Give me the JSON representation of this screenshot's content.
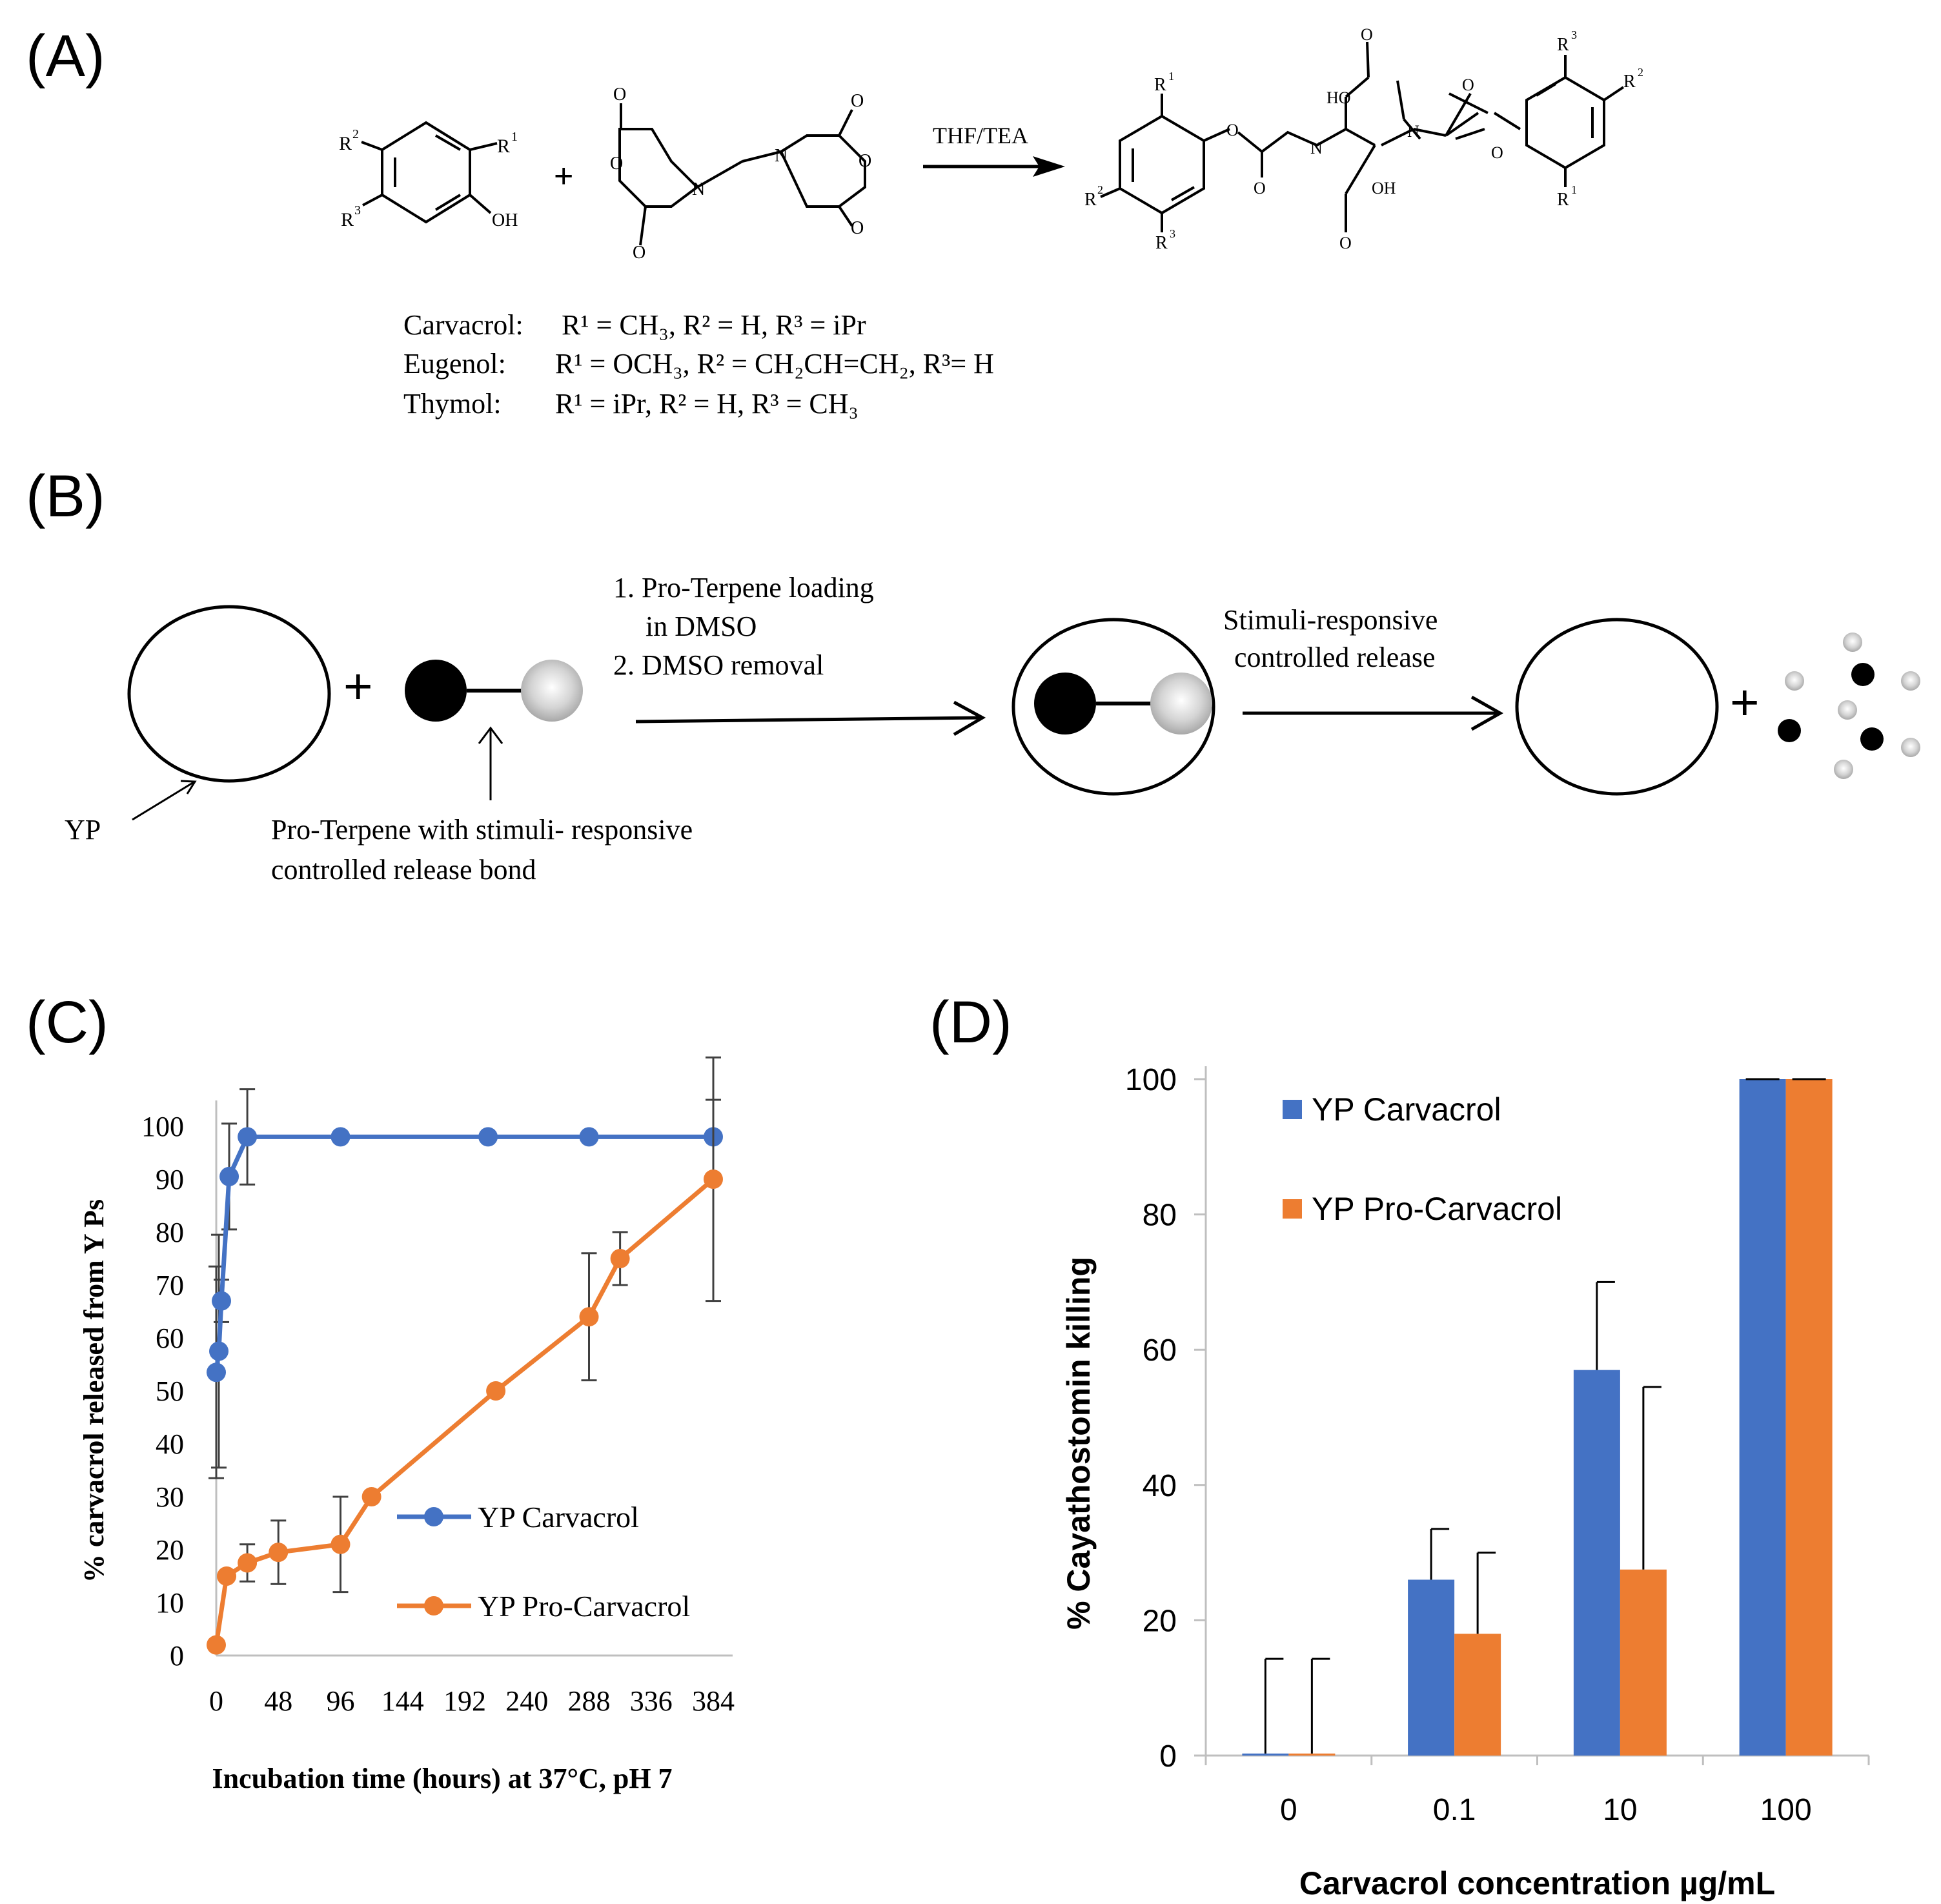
{
  "panels": {
    "a": {
      "label": "(A)",
      "reagent": "THF/TEA",
      "plus": "+",
      "sub_labels": {
        "r1": "R",
        "r2": "R",
        "r3": "R",
        "s1": "1",
        "s2": "2",
        "s3": "3",
        "oh": "OH",
        "n": "N",
        "o": "O",
        "ho": "HO"
      },
      "substituents": [
        {
          "name": "Carvacrol:",
          "text": "R¹ = CH₃, R² = H, R³ = iPr"
        },
        {
          "name": "Eugenol:",
          "text": "R¹ = OCH₃, R² = CH₂CH=CH₂, R³= H"
        },
        {
          "name": "Thymol:",
          "text": "R¹ = iPr, R² = H, R³ = CH₃"
        }
      ]
    },
    "b": {
      "label": "(B)",
      "step1": "1. Pro-Terpene loading",
      "step1b": "in DMSO",
      "step2": "2. DMSO removal",
      "release1": "Stimuli-responsive",
      "release2": "controlled release",
      "yp": "YP",
      "proterpene1": "Pro-Terpene with stimuli- responsive",
      "proterpene2": "controlled release bond",
      "plus": "+"
    },
    "c": {
      "label": "(C)"
    },
    "d": {
      "label": "(D)"
    }
  },
  "chart_data": [
    {
      "type": "line",
      "panel": "C",
      "xlabel": "Incubation time (hours) at 37°C, pH 7",
      "ylabel": "% carvacrol released from Y Ps",
      "xlim": [
        0,
        384
      ],
      "ylim": [
        0,
        100
      ],
      "xticks": [
        "0",
        "48",
        "96",
        "144",
        "192",
        "240",
        "288",
        "336",
        "384"
      ],
      "yticks": [
        "0",
        "10",
        "20",
        "30",
        "40",
        "50",
        "60",
        "70",
        "80",
        "90",
        "100"
      ],
      "legend_position": "bottom-right",
      "series": [
        {
          "name": "YP Carvacrol",
          "color": "#4472C4",
          "x": [
            0,
            2,
            4,
            10,
            24,
            96,
            210,
            288,
            384
          ],
          "y": [
            53.5,
            57.5,
            67,
            90.5,
            98,
            98,
            98,
            98,
            98
          ],
          "err": [
            20,
            22,
            4,
            10,
            9,
            0,
            0,
            0,
            7
          ]
        },
        {
          "name": "YP Pro-Carvacrol",
          "color": "#ED7D31",
          "x": [
            0,
            8,
            24,
            48,
            96,
            120,
            216,
            288,
            312,
            384
          ],
          "y": [
            2,
            15,
            17.5,
            19.5,
            21,
            30,
            50,
            64,
            75,
            90
          ],
          "err": [
            0,
            0,
            3.5,
            6,
            9,
            0,
            0,
            12,
            5,
            23
          ]
        }
      ]
    },
    {
      "type": "bar",
      "panel": "D",
      "xlabel": "Carvacrol concentration µg/mL",
      "ylabel": "% Cayathostomin killing",
      "ylim": [
        0,
        100
      ],
      "yticks": [
        "0",
        "20",
        "40",
        "60",
        "80",
        "100"
      ],
      "categories": [
        "0",
        "0.1",
        "10",
        "100"
      ],
      "legend_position": "top-left",
      "series": [
        {
          "name": "YP Carvacrol",
          "color": "#4472C4",
          "values": [
            0.3,
            26,
            57,
            100
          ],
          "err": [
            14,
            7.5,
            13,
            0
          ]
        },
        {
          "name": "YP Pro-Carvacrol",
          "color": "#ED7D31",
          "values": [
            0.3,
            18,
            27.5,
            100
          ],
          "err": [
            14,
            12,
            27,
            0
          ]
        }
      ]
    }
  ]
}
